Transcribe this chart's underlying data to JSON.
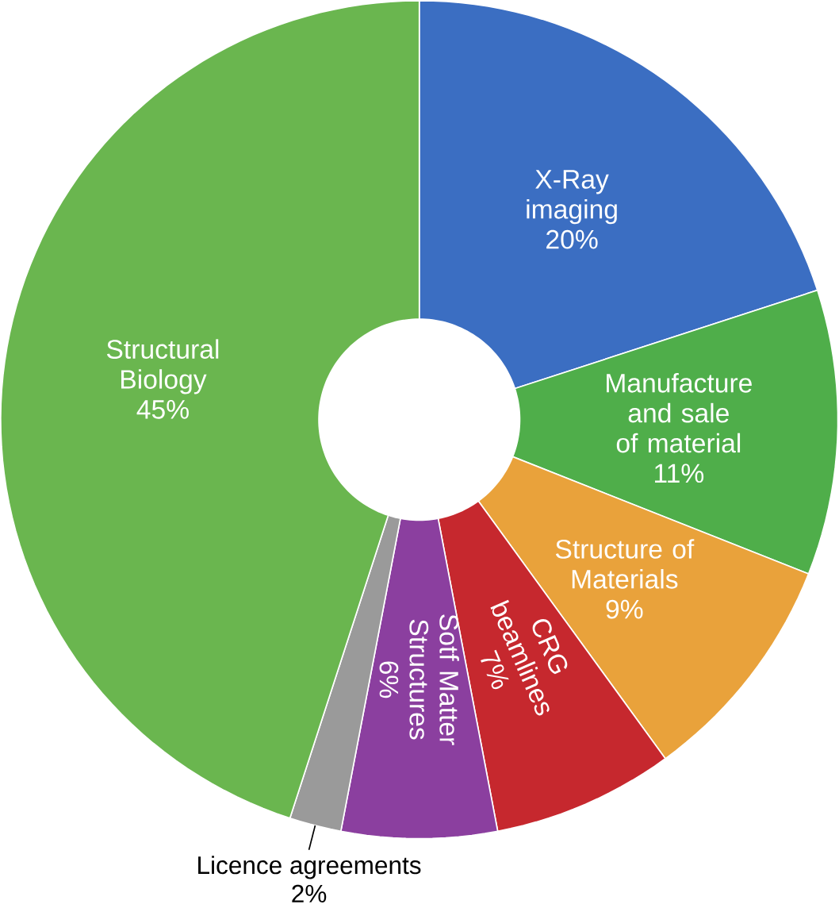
{
  "chart_data": {
    "type": "donut",
    "categories": [
      "X-Ray imaging",
      "Manufacture and sale of material",
      "Structure of Materials",
      "CRG beamlines",
      "Sotf Matter Structures",
      "Licence agreements",
      "Structural Biology"
    ],
    "values": [
      20,
      11,
      9,
      7,
      6,
      2,
      45
    ],
    "value_labels": [
      "20%",
      "11%",
      "9%",
      "7%",
      "6%",
      "2%",
      "45%"
    ],
    "colors": [
      "#3b6ec2",
      "#4fae4a",
      "#e9a23b",
      "#c6282e",
      "#8b3f9f",
      "#9a9a9a",
      "#6ab64f"
    ]
  }
}
